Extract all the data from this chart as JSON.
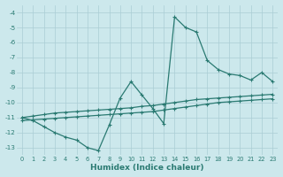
{
  "xlabel": "Humidex (Indice chaleur)",
  "bg_color": "#cce8ec",
  "grid_color": "#aacdd5",
  "line_color": "#2a7a72",
  "xlim": [
    -0.5,
    23.5
  ],
  "ylim": [
    -13.5,
    -3.5
  ],
  "yticks": [
    -13,
    -12,
    -11,
    -10,
    -9,
    -8,
    -7,
    -6,
    -5,
    -4
  ],
  "xticks": [
    0,
    1,
    2,
    3,
    4,
    5,
    6,
    7,
    8,
    9,
    10,
    11,
    12,
    13,
    14,
    15,
    16,
    17,
    18,
    19,
    20,
    21,
    22,
    23
  ],
  "line1_x": [
    0,
    1,
    2,
    3,
    4,
    5,
    6,
    7,
    8,
    9,
    10,
    11,
    12,
    13,
    14,
    15,
    16,
    17,
    18,
    19,
    20,
    21,
    22,
    23
  ],
  "line1_y": [
    -11.0,
    -11.2,
    -11.6,
    -12.0,
    -12.3,
    -12.5,
    -13.0,
    -13.2,
    -11.5,
    -9.7,
    -8.6,
    -9.5,
    -10.4,
    -11.4,
    -4.3,
    -5.0,
    -5.3,
    -7.2,
    -7.8,
    -8.1,
    -8.2,
    -8.5,
    -8.0,
    -8.6
  ],
  "line2_x": [
    0,
    1,
    2,
    3,
    4,
    5,
    6,
    7,
    8,
    9,
    10,
    11,
    12,
    13,
    14,
    15,
    16,
    17,
    18,
    19,
    20,
    21,
    22,
    23
  ],
  "line2_y": [
    -11.0,
    -10.9,
    -10.8,
    -10.7,
    -10.65,
    -10.6,
    -10.55,
    -10.5,
    -10.45,
    -10.4,
    -10.35,
    -10.25,
    -10.2,
    -10.1,
    -10.0,
    -9.9,
    -9.8,
    -9.75,
    -9.7,
    -9.65,
    -9.6,
    -9.55,
    -9.5,
    -9.45
  ],
  "line3_x": [
    0,
    1,
    2,
    3,
    4,
    5,
    6,
    7,
    8,
    9,
    10,
    11,
    12,
    13,
    14,
    15,
    16,
    17,
    18,
    19,
    20,
    21,
    22,
    23
  ],
  "line3_y": [
    -11.2,
    -11.15,
    -11.1,
    -11.05,
    -11.0,
    -10.95,
    -10.9,
    -10.85,
    -10.8,
    -10.75,
    -10.7,
    -10.65,
    -10.6,
    -10.5,
    -10.4,
    -10.3,
    -10.2,
    -10.1,
    -10.0,
    -9.95,
    -9.9,
    -9.85,
    -9.8,
    -9.75
  ]
}
